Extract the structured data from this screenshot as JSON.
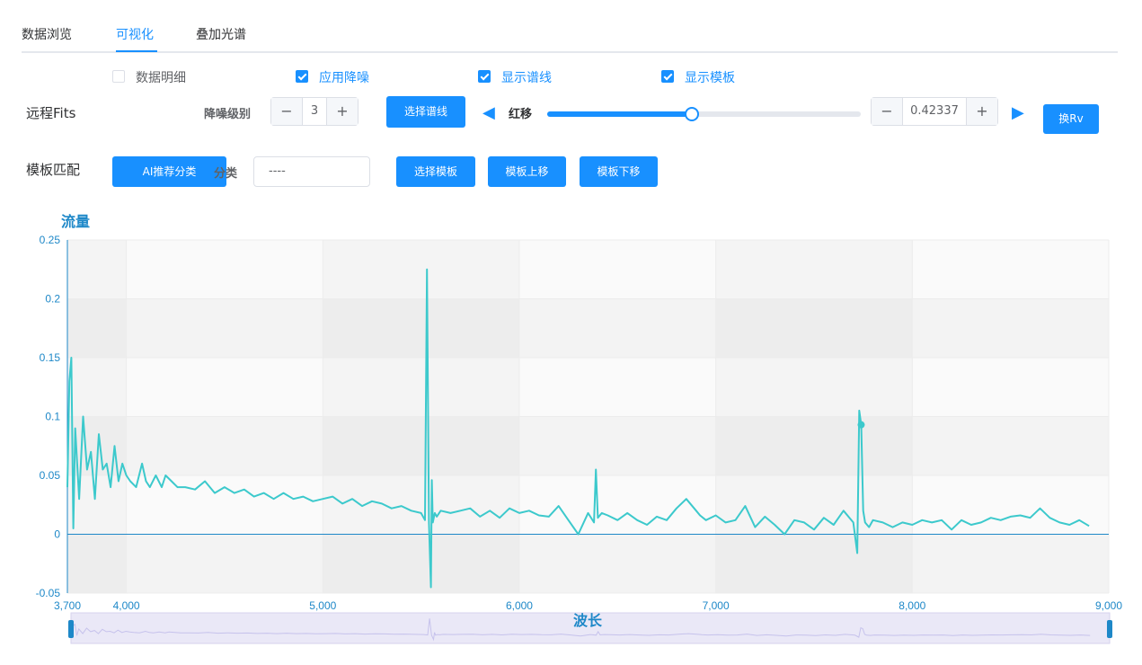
{
  "tabs": [
    {
      "label": "数据浏览",
      "active": false
    },
    {
      "label": "可视化",
      "active": true
    },
    {
      "label": "叠加光谱",
      "active": false
    }
  ],
  "options": [
    {
      "label": "数据明细",
      "checked": false
    },
    {
      "label": "应用降噪",
      "checked": true
    },
    {
      "label": "显示谱线",
      "checked": true
    },
    {
      "label": "显示模板",
      "checked": true
    }
  ],
  "fits_row": {
    "title": "远程Fits",
    "denoise_label": "降噪级别",
    "denoise_value": "3",
    "select_lines_button": "选择谱线",
    "redshift_label": "红移",
    "redshift_fraction": 0.46,
    "redshift_value": "0.42337",
    "swap_rv_button": "换Rv"
  },
  "template_row": {
    "title": "模板匹配",
    "ai_button": "AI推荐分类",
    "class_label": "分类",
    "class_value": "----",
    "select_template_button": "选择模板",
    "move_up_button": "模板上移",
    "move_down_button": "模板下移"
  },
  "chart_data": {
    "type": "line",
    "title": "",
    "xlabel": "波长",
    "ylabel": "流量",
    "xlim": [
      3700,
      9000
    ],
    "ylim": [
      -0.05,
      0.25
    ],
    "x_ticks": [
      "3,700",
      "4,000",
      "5,000",
      "6,000",
      "7,000",
      "8,000",
      "9,000"
    ],
    "y_ticks": [
      "0.25",
      "0.2",
      "0.15",
      "0.1",
      "0.05",
      "0",
      "-0.05"
    ],
    "line_color": "#3cc9cc",
    "grid": true,
    "series": [
      {
        "x": [
          3700,
          3710,
          3720,
          3730,
          3740,
          3750,
          3760,
          3780,
          3800,
          3820,
          3840,
          3860,
          3880,
          3900,
          3920,
          3940,
          3960,
          3980,
          4000,
          4020,
          4050,
          4080,
          4100,
          4120,
          4150,
          4180,
          4200,
          4230,
          4260,
          4300,
          4350,
          4400,
          4450,
          4500,
          4550,
          4600,
          4650,
          4700,
          4750,
          4800,
          4850,
          4900,
          4950,
          5000,
          5050,
          5100,
          5150,
          5200,
          5250,
          5300,
          5350,
          5400,
          5450,
          5500,
          5520,
          5530,
          5540,
          5550,
          5555,
          5560,
          5570,
          5580,
          5600,
          5650,
          5700,
          5750,
          5800,
          5850,
          5900,
          5950,
          6000,
          6050,
          6100,
          6150,
          6200,
          6250,
          6300,
          6350,
          6380,
          6390,
          6400,
          6420,
          6450,
          6500,
          6550,
          6600,
          6650,
          6700,
          6750,
          6800,
          6850,
          6900,
          6920,
          6950,
          7000,
          7050,
          7100,
          7150,
          7200,
          7250,
          7300,
          7350,
          7400,
          7450,
          7500,
          7550,
          7600,
          7650,
          7700,
          7720,
          7730,
          7740,
          7750,
          7760,
          7780,
          7800,
          7850,
          7900,
          7950,
          8000,
          8050,
          8100,
          8150,
          8200,
          8250,
          8300,
          8350,
          8400,
          8450,
          8500,
          8550,
          8600,
          8650,
          8700,
          8750,
          8800,
          8850,
          8900
        ],
        "y": [
          0.04,
          0.13,
          0.15,
          0.005,
          0.09,
          0.06,
          0.03,
          0.1,
          0.055,
          0.07,
          0.03,
          0.085,
          0.055,
          0.06,
          0.04,
          0.075,
          0.045,
          0.06,
          0.05,
          0.045,
          0.04,
          0.06,
          0.045,
          0.04,
          0.05,
          0.04,
          0.05,
          0.045,
          0.04,
          0.04,
          0.038,
          0.045,
          0.035,
          0.04,
          0.035,
          0.038,
          0.032,
          0.035,
          0.03,
          0.035,
          0.03,
          0.032,
          0.028,
          0.03,
          0.032,
          0.026,
          0.03,
          0.024,
          0.028,
          0.026,
          0.022,
          0.024,
          0.02,
          0.018,
          0.012,
          0.225,
          0.01,
          -0.045,
          0.046,
          0.01,
          0.018,
          0.015,
          0.02,
          0.018,
          0.02,
          0.022,
          0.015,
          0.02,
          0.014,
          0.022,
          0.018,
          0.02,
          0.016,
          0.015,
          0.024,
          0.012,
          0.0,
          0.018,
          0.01,
          0.055,
          0.014,
          0.018,
          0.016,
          0.012,
          0.018,
          0.012,
          0.008,
          0.015,
          0.012,
          0.022,
          0.03,
          0.02,
          0.016,
          0.012,
          0.016,
          0.01,
          0.012,
          0.024,
          0.006,
          0.015,
          0.008,
          0.0,
          0.012,
          0.01,
          0.004,
          0.014,
          0.008,
          0.02,
          0.01,
          -0.016,
          0.105,
          0.093,
          0.02,
          0.01,
          0.006,
          0.012,
          0.01,
          0.006,
          0.01,
          0.008,
          0.012,
          0.01,
          0.012,
          0.004,
          0.012,
          0.008,
          0.01,
          0.014,
          0.012,
          0.015,
          0.016,
          0.014,
          0.022,
          0.014,
          0.01,
          0.008,
          0.012,
          0.007
        ]
      }
    ]
  }
}
